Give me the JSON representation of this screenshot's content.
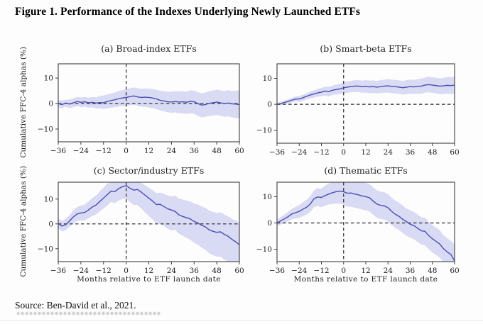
{
  "figure": {
    "title": "Figure 1. Performance of the Indexes Underlying Newly Launched ETFs",
    "source": "Source: Ben-David et al., 2021."
  },
  "colors": {
    "line": "#4a4fb4",
    "band": "#d9daf3",
    "dash": "#262626",
    "frame": "#3d3d3d",
    "tick_text": "#1c1c1c"
  },
  "chart_data": [
    {
      "id": "a",
      "type": "line",
      "title": "(a) Broad-index ETFs",
      "xlabel": "",
      "ylabel": "Cumulative FFC-4 alphas (%)",
      "xlim": [
        -36,
        60
      ],
      "ylim": [
        -15,
        15.6
      ],
      "xticks": [
        -36,
        -24,
        -12,
        0,
        12,
        24,
        36,
        48,
        60
      ],
      "yticks": [
        10,
        0,
        -10
      ],
      "x": [
        -36,
        -34,
        -32,
        -30,
        -28,
        -26,
        -24,
        -22,
        -20,
        -18,
        -16,
        -14,
        -12,
        -10,
        -8,
        -6,
        -4,
        -2,
        0,
        2,
        4,
        6,
        8,
        10,
        12,
        14,
        16,
        18,
        20,
        22,
        24,
        26,
        28,
        30,
        32,
        34,
        36,
        38,
        40,
        42,
        44,
        46,
        48,
        50,
        52,
        54,
        56,
        58,
        60
      ],
      "series": [
        {
          "name": "Cumulative FFC-4 alpha",
          "values": [
            0,
            -0.4,
            0.2,
            -0.2,
            0.3,
            0.8,
            0.5,
            0.7,
            0.3,
            0.5,
            0.2,
            0.4,
            0.3,
            0.8,
            1.2,
            1.5,
            1.9,
            2.2,
            2.4,
            2.7,
            3,
            2.6,
            2.4,
            2.5,
            2.4,
            2.2,
            1.8,
            1.3,
            1,
            0.7,
            0.6,
            0.8,
            0.6,
            0.7,
            0.5,
            0.9,
            0.7,
            0,
            -0.6,
            -0.4,
            0.1,
            0.3,
            0.6,
            0.3,
            0,
            0.2,
            -0.1,
            -0.2,
            -0.4
          ]
        },
        {
          "name": "Confidence band upper",
          "values": [
            1.4,
            1.2,
            1.5,
            1.6,
            2,
            2.6,
            2.4,
            2.6,
            2.3,
            2.6,
            2.5,
            2.9,
            3.2,
            3.6,
            4,
            4.4,
            4.9,
            5.3,
            5.6,
            6,
            6.3,
            6,
            5.8,
            5.9,
            5.9,
            5.7,
            5.4,
            5,
            4.8,
            4.6,
            4.6,
            4.9,
            4.7,
            4.9,
            4.7,
            5.2,
            5.1,
            4.5,
            4,
            4.3,
            4.8,
            5.1,
            5.5,
            5.2,
            4.9,
            5.2,
            5,
            5,
            5.3
          ]
        },
        {
          "name": "Confidence band lower",
          "values": [
            -1.4,
            -1.8,
            -1.2,
            -1.8,
            -1.4,
            -1,
            -1.4,
            -1.2,
            -1.6,
            -1.5,
            -1.9,
            -1.9,
            -2.2,
            -1.9,
            -1.6,
            -1.4,
            -1.2,
            -1,
            -0.9,
            -0.7,
            -0.5,
            -0.9,
            -1.2,
            -1.3,
            -1.5,
            -1.8,
            -2.2,
            -2.7,
            -3,
            -3.4,
            -3.6,
            -3.5,
            -3.8,
            -3.8,
            -4.1,
            -3.8,
            -4,
            -4.8,
            -5.4,
            -5.2,
            -4.8,
            -4.7,
            -4.4,
            -4.8,
            -5.2,
            -5,
            -5.4,
            -5.6,
            -5.9
          ]
        }
      ]
    },
    {
      "id": "b",
      "type": "line",
      "title": "(b) Smart-beta ETFs",
      "xlabel": "",
      "ylabel": "",
      "xlim": [
        -36,
        60
      ],
      "ylim": [
        -15,
        15.6
      ],
      "xticks": [
        -36,
        -24,
        -12,
        0,
        12,
        24,
        36,
        48,
        60
      ],
      "yticks": [
        10,
        0,
        -10
      ],
      "x": [
        -36,
        -34,
        -32,
        -30,
        -28,
        -26,
        -24,
        -22,
        -20,
        -18,
        -16,
        -14,
        -12,
        -10,
        -8,
        -6,
        -4,
        -2,
        0,
        2,
        4,
        6,
        8,
        10,
        12,
        14,
        16,
        18,
        20,
        22,
        24,
        26,
        28,
        30,
        32,
        34,
        36,
        38,
        40,
        42,
        44,
        46,
        48,
        50,
        52,
        54,
        56,
        58,
        60
      ],
      "series": [
        {
          "name": "Cumulative FFC-4 alpha",
          "values": [
            0,
            0.3,
            0.7,
            1.1,
            1.6,
            2,
            2.1,
            2.5,
            3.1,
            3.6,
            4,
            4.4,
            4.7,
            5.1,
            4.9,
            5.4,
            5.7,
            5.9,
            6.4,
            6.6,
            6.8,
            7,
            7,
            6.8,
            6.9,
            6.7,
            6.8,
            6.6,
            6.8,
            7,
            7.1,
            6.9,
            6.8,
            6.6,
            6.4,
            6.6,
            6.8,
            6.7,
            6.9,
            7,
            7.4,
            7.6,
            7.4,
            7.2,
            7,
            7.1,
            7.3,
            7.2,
            7.4
          ]
        },
        {
          "name": "Confidence band upper",
          "values": [
            0.5,
            0.9,
            1.4,
            1.9,
            2.5,
            3,
            3.2,
            3.7,
            4.3,
            4.9,
            5.4,
            5.9,
            6.3,
            6.8,
            6.7,
            7.2,
            7.6,
            7.9,
            8.5,
            8.8,
            9,
            9.3,
            9.3,
            9.1,
            9.3,
            9.1,
            9.2,
            9,
            9.3,
            9.5,
            9.7,
            9.5,
            9.4,
            9.2,
            9,
            9.3,
            9.5,
            9.4,
            9.7,
            9.9,
            10.3,
            10.6,
            10.4,
            10.2,
            10,
            10.2,
            10.5,
            10.4,
            10.7
          ]
        },
        {
          "name": "Confidence band lower",
          "values": [
            -0.5,
            -0.3,
            0,
            0.3,
            0.7,
            1,
            1,
            1.3,
            1.9,
            2.3,
            2.6,
            2.9,
            3.1,
            3.4,
            3.1,
            3.6,
            3.8,
            3.9,
            4.3,
            4.4,
            4.6,
            4.7,
            4.7,
            4.5,
            4.5,
            4.3,
            4.4,
            4.2,
            4.3,
            4.5,
            4.5,
            4.3,
            4.2,
            4,
            3.8,
            3.9,
            4.1,
            4,
            4.1,
            4.1,
            4.5,
            4.6,
            4.4,
            4.2,
            3.9,
            4,
            4.1,
            4,
            4.1
          ]
        }
      ]
    },
    {
      "id": "c",
      "type": "line",
      "title": "(c) Sector/industry ETFs",
      "xlabel": "Months relative to ETF launch date",
      "ylabel": "Cumulative FFC-4 alphas (%)",
      "xlim": [
        -36,
        60
      ],
      "ylim": [
        -15.2,
        16.8
      ],
      "xticks": [
        -36,
        -24,
        -12,
        0,
        12,
        24,
        36,
        48,
        60
      ],
      "yticks": [
        10,
        0,
        -10
      ],
      "x": [
        -36,
        -34,
        -32,
        -30,
        -28,
        -26,
        -24,
        -22,
        -20,
        -18,
        -16,
        -14,
        -12,
        -10,
        -8,
        -6,
        -4,
        -2,
        0,
        2,
        4,
        6,
        8,
        10,
        12,
        14,
        16,
        18,
        20,
        22,
        24,
        26,
        28,
        30,
        32,
        34,
        36,
        38,
        40,
        42,
        44,
        46,
        48,
        50,
        52,
        54,
        56,
        58,
        60
      ],
      "series": [
        {
          "name": "Cumulative FFC-4 alpha",
          "values": [
            0.2,
            -0.9,
            -0.3,
            1.2,
            2.8,
            4,
            4.4,
            4.6,
            5.6,
            6.8,
            7.6,
            9,
            10.4,
            11.8,
            13.2,
            13,
            14.2,
            15,
            15.4,
            14.4,
            13.6,
            13.9,
            12.8,
            11.6,
            10.4,
            9.2,
            7.8,
            7.9,
            7,
            6.1,
            5.6,
            5,
            3.6,
            3,
            2.5,
            2,
            1,
            0.4,
            -0.6,
            -1.2,
            -2.4,
            -3,
            -3.4,
            -3.2,
            -4.2,
            -5,
            -6.2,
            -7.2,
            -8.4
          ]
        },
        {
          "name": "Confidence band upper",
          "values": [
            2.2,
            1.2,
            2,
            3.6,
            5.4,
            6.8,
            7.4,
            7.8,
            9,
            10.4,
            11.4,
            13,
            14.6,
            16.2,
            17.5,
            17.3,
            17.5,
            17.5,
            17.5,
            17.5,
            17,
            17.4,
            16.6,
            15.6,
            14.6,
            13.6,
            12.4,
            12.6,
            12.2,
            11.4,
            11,
            11.4,
            10.2,
            9.8,
            9.4,
            9,
            8.2,
            7.8,
            7,
            6.4,
            5.4,
            4.8,
            4.4,
            4.6,
            3.8,
            3,
            2,
            1.4,
            0.6
          ]
        },
        {
          "name": "Confidence band lower",
          "values": [
            -1.8,
            -3,
            -2.6,
            -1.2,
            0.2,
            1.2,
            1.4,
            1.4,
            2.2,
            3.2,
            3.8,
            5,
            6.2,
            7.4,
            8.8,
            8.4,
            9.4,
            10,
            10.2,
            8.8,
            7.6,
            7.6,
            6.2,
            4.6,
            3.2,
            1.8,
            0.2,
            0,
            -0.8,
            -2,
            -2.6,
            -2.4,
            -4,
            -4.8,
            -5.6,
            -6.4,
            -7.6,
            -8.4,
            -9.6,
            -10.4,
            -11.8,
            -12.6,
            -13.2,
            -13.2,
            -14.4,
            -15.2,
            -16,
            -16.6,
            -17
          ]
        }
      ]
    },
    {
      "id": "d",
      "type": "line",
      "title": "(d) Thematic ETFs",
      "xlabel": "Months relative to ETF launch date",
      "ylabel": "",
      "xlim": [
        -36,
        60
      ],
      "ylim": [
        -14.7,
        15.5
      ],
      "xticks": [
        -36,
        -24,
        -12,
        0,
        12,
        24,
        36,
        48,
        60
      ],
      "yticks": [
        10,
        0,
        -10
      ],
      "x": [
        -36,
        -34,
        -32,
        -30,
        -28,
        -26,
        -24,
        -22,
        -20,
        -18,
        -16,
        -14,
        -12,
        -10,
        -8,
        -6,
        -4,
        -2,
        0,
        2,
        4,
        6,
        8,
        10,
        12,
        14,
        16,
        18,
        20,
        22,
        24,
        26,
        28,
        30,
        32,
        34,
        36,
        38,
        40,
        42,
        44,
        46,
        48,
        50,
        52,
        54,
        56,
        58,
        60
      ],
      "series": [
        {
          "name": "Cumulative FFC-4 alpha",
          "values": [
            0,
            0.8,
            1.6,
            2.4,
            3.4,
            3.9,
            4.4,
            5.2,
            6,
            7.2,
            9.2,
            9.9,
            9.7,
            10.4,
            11,
            11.5,
            11.9,
            12.1,
            11.9,
            11.3,
            11.4,
            11,
            10.7,
            10.3,
            10,
            9.6,
            8.3,
            7.2,
            6.7,
            6.5,
            5.8,
            4.4,
            3.3,
            2.5,
            1.4,
            0.5,
            -0.5,
            -1,
            -2,
            -3,
            -3.2,
            -4.8,
            -6,
            -7,
            -8,
            -9.8,
            -11,
            -12,
            -14.4
          ]
        },
        {
          "name": "Confidence band upper",
          "values": [
            1.2,
            2.2,
            3.2,
            4.2,
            5.4,
            6.1,
            6.8,
            7.8,
            8.8,
            10.2,
            12.4,
            13.2,
            13,
            14.2,
            15,
            15.8,
            16.4,
            16.8,
            16.8,
            16.4,
            16.6,
            16.2,
            15.9,
            15.5,
            15.2,
            14.8,
            13.5,
            12.4,
            11.9,
            11.7,
            11,
            9.6,
            8.5,
            7.7,
            6.6,
            5.5,
            4.8,
            4.2,
            3.2,
            2.2,
            2,
            0.4,
            -0.8,
            -1.8,
            -2.8,
            -4.6,
            -5.8,
            -6.8,
            -8.2
          ]
        },
        {
          "name": "Confidence band lower",
          "values": [
            -1.2,
            -0.6,
            0,
            0.6,
            1.4,
            1.7,
            2,
            2.6,
            3.2,
            4.2,
            6,
            6.4,
            6,
            6.6,
            7,
            7.2,
            7.4,
            7.4,
            7,
            6.2,
            6.2,
            5.8,
            5.5,
            5.1,
            4.8,
            4.4,
            3.1,
            2,
            1.5,
            1.3,
            0.6,
            -0.8,
            -1.9,
            -2.7,
            -3.8,
            -4.9,
            -5.6,
            -6.2,
            -7.2,
            -8.2,
            -8.4,
            -10,
            -11.2,
            -12.2,
            -13.2,
            -15,
            -16.2,
            -17.2,
            -18
          ]
        }
      ]
    }
  ]
}
